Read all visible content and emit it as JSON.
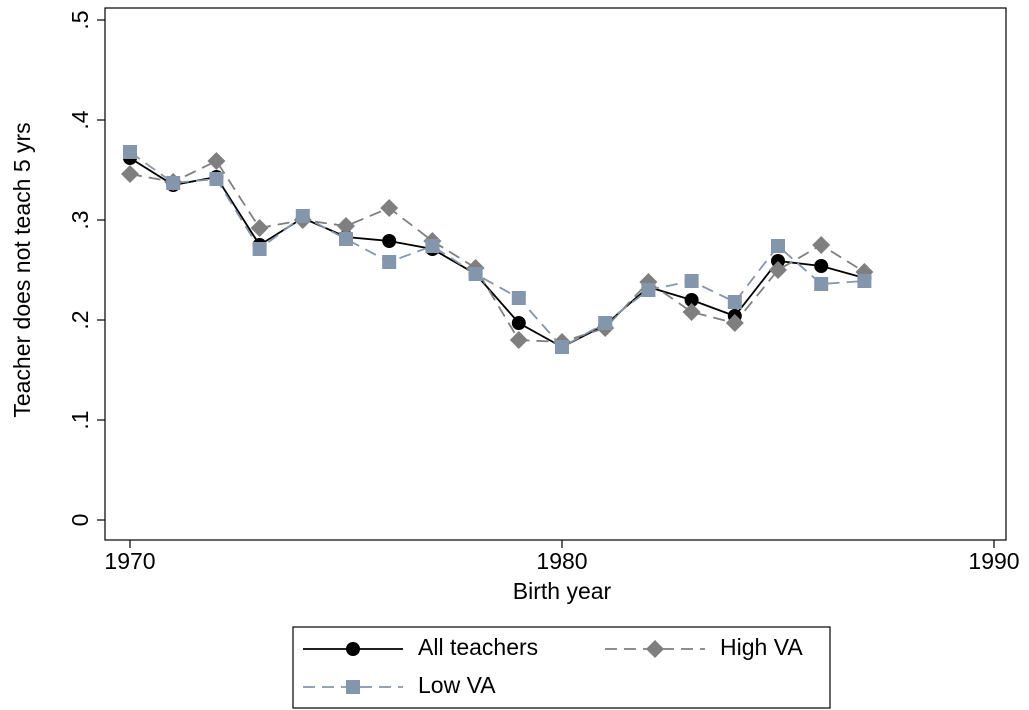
{
  "chart_data": {
    "type": "line",
    "x_label": "Birth year",
    "y_label": "Teacher does not teach 5 yrs",
    "x": [
      1970,
      1971,
      1972,
      1973,
      1974,
      1975,
      1976,
      1977,
      1978,
      1979,
      1980,
      1981,
      1982,
      1983,
      1984,
      1985,
      1986,
      1987
    ],
    "series": [
      {
        "name": "All teachers",
        "color": "#000000",
        "marker": "circle",
        "dash": false,
        "values": [
          0.362,
          0.335,
          0.343,
          0.275,
          0.302,
          0.283,
          0.279,
          0.271,
          0.246,
          0.197,
          0.173,
          0.195,
          0.233,
          0.22,
          0.204,
          0.259,
          0.254,
          0.242
        ]
      },
      {
        "name": "High VA",
        "color": "#7f7f7f",
        "marker": "diamond",
        "dash": true,
        "values": [
          0.346,
          0.338,
          0.359,
          0.292,
          0.3,
          0.294,
          0.312,
          0.279,
          0.252,
          0.18,
          0.178,
          0.192,
          0.238,
          0.208,
          0.197,
          0.25,
          0.275,
          0.248
        ]
      },
      {
        "name": "Low VA",
        "color": "#8496ab",
        "marker": "square",
        "dash": true,
        "values": [
          0.368,
          0.337,
          0.341,
          0.271,
          0.304,
          0.281,
          0.258,
          0.274,
          0.246,
          0.222,
          0.173,
          0.197,
          0.23,
          0.239,
          0.218,
          0.274,
          0.236,
          0.239
        ]
      }
    ],
    "xlim": [
      1970,
      1990
    ],
    "xticks": [
      1970,
      1980,
      1990
    ],
    "ylim": [
      0,
      0.5
    ],
    "yticks": [
      0,
      {
        "value": 0.1,
        "label": ".1"
      },
      {
        "value": 0.2,
        "label": ".2"
      },
      {
        "value": 0.3,
        "label": ".3"
      },
      {
        "value": 0.4,
        "label": ".4"
      },
      {
        "value": 0.5,
        "label": ".5"
      }
    ],
    "grid": false,
    "legend_position": "bottom"
  }
}
